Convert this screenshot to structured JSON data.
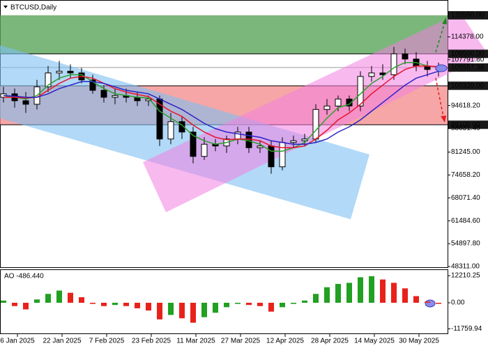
{
  "chart_data": {
    "type": "candlestick",
    "title": "BTCUSD,Daily",
    "x": [
      "2025-01-01",
      "2025-01-05",
      "2025-01-09",
      "2025-01-13",
      "2025-01-17",
      "2025-01-21",
      "2025-01-25",
      "2025-01-29",
      "2025-02-02",
      "2025-02-06",
      "2025-02-10",
      "2025-02-14",
      "2025-02-18",
      "2025-02-22",
      "2025-02-26",
      "2025-03-02",
      "2025-03-06",
      "2025-03-10",
      "2025-03-14",
      "2025-03-18",
      "2025-03-22",
      "2025-03-26",
      "2025-03-30",
      "2025-04-03",
      "2025-04-07",
      "2025-04-11",
      "2025-04-15",
      "2025-04-19",
      "2025-04-23",
      "2025-04-27",
      "2025-05-01",
      "2025-05-05",
      "2025-05-09",
      "2025-05-13",
      "2025-05-17",
      "2025-05-21",
      "2025-05-25",
      "2025-05-29",
      "2025-06-02",
      "2025-06-06"
    ],
    "open": [
      97000,
      98000,
      96000,
      95000,
      100000,
      104000,
      104500,
      104000,
      102000,
      99000,
      97000,
      97500,
      97000,
      96000,
      96500,
      85000,
      90000,
      87000,
      80000,
      83500,
      83000,
      85000,
      87000,
      82500,
      83000,
      77000,
      84000,
      84500,
      85000,
      93500,
      94500,
      96500,
      94500,
      103000,
      104000,
      103500,
      109500,
      108000,
      106000,
      105000
    ],
    "high": [
      100000,
      99500,
      98500,
      102000,
      106000,
      107500,
      106500,
      105500,
      103500,
      100500,
      99500,
      99500,
      98500,
      97500,
      97500,
      92500,
      91500,
      88500,
      85500,
      85000,
      86000,
      88500,
      88500,
      84500,
      84500,
      85500,
      86000,
      86500,
      95000,
      96500,
      97500,
      97500,
      104500,
      106000,
      106500,
      111500,
      111000,
      110000,
      107500,
      107000
    ],
    "low": [
      95500,
      94000,
      92500,
      93500,
      98500,
      102000,
      102500,
      101000,
      98000,
      95500,
      95000,
      95500,
      94500,
      94500,
      83000,
      83500,
      85000,
      78000,
      79000,
      81500,
      81000,
      83500,
      81000,
      81000,
      75000,
      76000,
      82500,
      83000,
      84000,
      92000,
      93000,
      93000,
      93000,
      101500,
      102000,
      102000,
      106500,
      104500,
      103000,
      103000
    ],
    "close": [
      98000,
      96000,
      95000,
      100000,
      104000,
      104500,
      104000,
      102000,
      99000,
      97000,
      97500,
      97000,
      96000,
      96500,
      85000,
      90000,
      87000,
      80000,
      83500,
      83000,
      85000,
      87000,
      82500,
      83000,
      77000,
      84000,
      84500,
      85000,
      93500,
      94500,
      96500,
      94500,
      103000,
      104000,
      103500,
      109500,
      108000,
      106000,
      105000,
      105557.36
    ],
    "up_color": "#ffffff",
    "down_color": "#000000",
    "lines": [
      {
        "color": "#2ca02c",
        "values": [
          97500,
          97000,
          96500,
          97500,
          100500,
          102500,
          103500,
          103500,
          101500,
          99500,
          98000,
          97500,
          97000,
          96800,
          93000,
          91000,
          89000,
          86000,
          84500,
          83500,
          84000,
          85000,
          84500,
          83500,
          81500,
          81500,
          82500,
          84000,
          87500,
          91000,
          94000,
          95000,
          98000,
          101000,
          103000,
          105500,
          107000,
          107000,
          106000,
          105800
        ]
      },
      {
        "color": "#e8132b",
        "values": [
          97000,
          97000,
          96800,
          97000,
          99000,
          101000,
          102500,
          103000,
          102500,
          101000,
          99500,
          98500,
          97800,
          97200,
          95000,
          93000,
          91500,
          89000,
          87000,
          85500,
          84800,
          85000,
          85000,
          84500,
          83000,
          82500,
          82500,
          83000,
          85000,
          87500,
          90500,
          92500,
          95000,
          98000,
          100500,
          103000,
          105000,
          106000,
          106000,
          105800
        ]
      },
      {
        "color": "#2a22c8",
        "values": [
          97500,
          97300,
          97000,
          97000,
          98000,
          99500,
          100500,
          101500,
          101500,
          101000,
          100000,
          99000,
          98500,
          98000,
          96500,
          95000,
          93500,
          91500,
          89500,
          88000,
          87000,
          86500,
          86000,
          85500,
          84500,
          84000,
          83500,
          83500,
          84000,
          85000,
          87000,
          88500,
          90500,
          93000,
          95500,
          98000,
          100500,
          102500,
          103500,
          104500
        ]
      }
    ],
    "zones": [
      {
        "from": 109500,
        "to": 120580,
        "color": "#5aa55a"
      },
      {
        "from": 89100,
        "to": 100320,
        "color": "#f49090"
      }
    ],
    "levels": [
      109500,
      100320,
      89100
    ],
    "current_price": 105557.36,
    "ylim": [
      48311,
      120580
    ],
    "yticks": [
      {
        "value": 120580,
        "label": "120580.00",
        "highlight": true
      },
      {
        "value": 114378,
        "label": "114378.00"
      },
      {
        "value": 109500,
        "label": "109500.00",
        "highlight": true
      },
      {
        "value": 107791.8,
        "label": "107791.80"
      },
      {
        "value": 105557.36,
        "label": "105557.36",
        "highlight": true
      },
      {
        "value": 100320,
        "label": "100320.00",
        "highlight": true
      },
      {
        "value": 94618.2,
        "label": "94618.20"
      },
      {
        "value": 89100,
        "label": "89100.00",
        "highlight": true
      },
      {
        "value": 88031.4,
        "label": "88031.40"
      },
      {
        "value": 81245,
        "label": "81245.00"
      },
      {
        "value": 74658.2,
        "label": "74658.20"
      },
      {
        "value": 68071.4,
        "label": "68071.40"
      },
      {
        "value": 61484.6,
        "label": "61484.60"
      },
      {
        "value": 54897.8,
        "label": "54897.80"
      },
      {
        "value": 48311,
        "label": "48311.00"
      }
    ],
    "xticks": [
      {
        "value": "2025-01-06",
        "label": "6 Jan 2025"
      },
      {
        "value": "2025-01-22",
        "label": "22 Jan 2025"
      },
      {
        "value": "2025-02-07",
        "label": "7 Feb 2025"
      },
      {
        "value": "2025-02-23",
        "label": "23 Feb 2025"
      },
      {
        "value": "2025-03-11",
        "label": "11 Mar 2025"
      },
      {
        "value": "2025-03-27",
        "label": "27 Mar 2025"
      },
      {
        "value": "2025-04-12",
        "label": "12 Apr 2025"
      },
      {
        "value": "2025-04-28",
        "label": "28 Apr 2025"
      },
      {
        "value": "2025-05-14",
        "label": "14 May 2025"
      },
      {
        "value": "2025-05-30",
        "label": "30 May 2025"
      }
    ],
    "ao": {
      "label": "AO -486.440",
      "up_color": "#22a022",
      "down_color": "#e8221b",
      "values": [
        1000,
        -1500,
        -3000,
        1500,
        4000,
        5500,
        4500,
        2500,
        -500,
        -1500,
        -1000,
        -1500,
        -2500,
        -3500,
        -7500,
        -5500,
        -7000,
        -9000,
        -6500,
        -4500,
        -2000,
        -500,
        -1000,
        -1500,
        -4000,
        -2000,
        -500,
        1000,
        4000,
        7000,
        8500,
        9000,
        11500,
        12000,
        10500,
        9000,
        6500,
        3000,
        500,
        -486.44
      ],
      "ylim": [
        -13500,
        13500
      ],
      "yticks": [
        {
          "value": 12210.25,
          "label": "12210.25"
        },
        {
          "value": 0,
          "label": "0.00"
        },
        {
          "value": -11759.94,
          "label": "-11759.94"
        }
      ]
    }
  }
}
